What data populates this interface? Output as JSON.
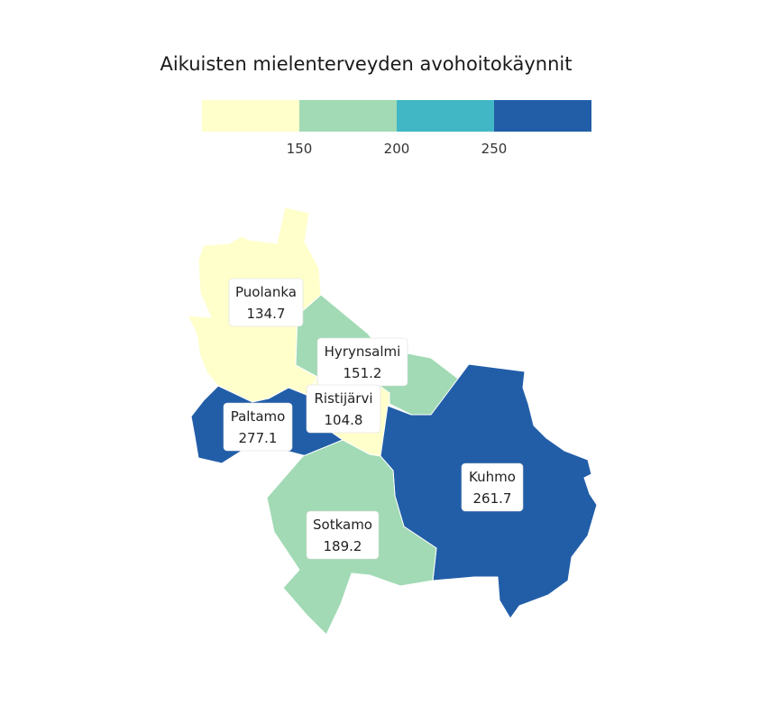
{
  "chart_data": {
    "type": "choropleth",
    "title": "Aikuisten mielenterveyden avohoitokäynnit",
    "legend": {
      "breaks": [
        150,
        200,
        250
      ],
      "tick_labels": [
        "150",
        "200",
        "250"
      ],
      "colors": [
        "#ffffcc",
        "#a1dab4",
        "#41b6c4",
        "#225ea8"
      ]
    },
    "regions": [
      {
        "name": "Puolanka",
        "value": 134.7,
        "value_label": "134.7"
      },
      {
        "name": "Hyrynsalmi",
        "value": 151.2,
        "value_label": "151.2"
      },
      {
        "name": "Ristijärvi",
        "value": 104.8,
        "value_label": "104.8"
      },
      {
        "name": "Paltamo",
        "value": 277.1,
        "value_label": "277.1"
      },
      {
        "name": "Kuhmo",
        "value": 261.7,
        "value_label": "261.7"
      },
      {
        "name": "Sotkamo",
        "value": 189.2,
        "value_label": "189.2"
      }
    ]
  }
}
